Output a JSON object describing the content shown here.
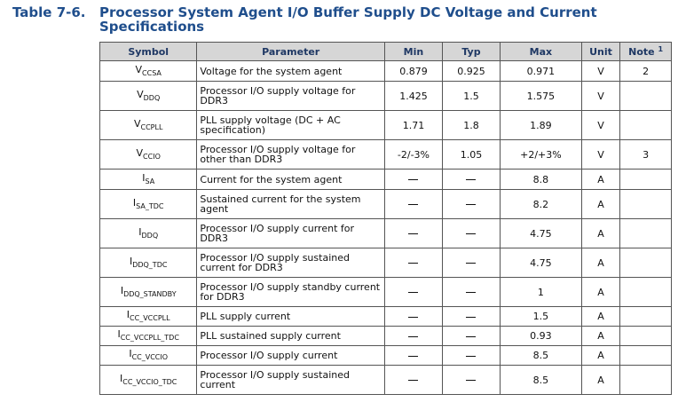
{
  "caption": {
    "number": "Table 7-6.",
    "title": "Processor System Agent I/O Buffer Supply DC Voltage and Current Specifications"
  },
  "headers": {
    "symbol": "Symbol",
    "parameter": "Parameter",
    "min": "Min",
    "typ": "Typ",
    "max": "Max",
    "unit": "Unit",
    "note": "Note",
    "note_sup": "1"
  },
  "rows": [
    {
      "sym_main": "V",
      "sym_sub": "CCSA",
      "parameter": "Voltage for the system agent",
      "min": "0.879",
      "typ": "0.925",
      "max": "0.971",
      "unit": "V",
      "note": "2"
    },
    {
      "sym_main": "V",
      "sym_sub": "DDQ",
      "parameter": "Processor I/O supply voltage for DDR3",
      "min": "1.425",
      "typ": "1.5",
      "max": "1.575",
      "unit": "V",
      "note": ""
    },
    {
      "sym_main": "V",
      "sym_sub": "CCPLL",
      "parameter": "PLL supply voltage (DC + AC specification)",
      "min": "1.71",
      "typ": "1.8",
      "max": "1.89",
      "unit": "V",
      "note": ""
    },
    {
      "sym_main": "V",
      "sym_sub": "CCIO",
      "parameter": "Processor I/O supply voltage for other than DDR3",
      "min": "-2/-3%",
      "typ": "1.05",
      "max": "+2/+3%",
      "unit": "V",
      "note": "3"
    },
    {
      "sym_main": "I",
      "sym_sub": "SA",
      "parameter": "Current for the system agent",
      "min": "",
      "typ": "",
      "max": "8.8",
      "unit": "A",
      "note": ""
    },
    {
      "sym_main": "I",
      "sym_sub": "SA_TDC",
      "parameter": "Sustained current for the system agent",
      "min": "",
      "typ": "",
      "max": "8.2",
      "unit": "A",
      "note": ""
    },
    {
      "sym_main": "I",
      "sym_sub": "DDQ",
      "parameter": "Processor I/O supply current for DDR3",
      "min": "",
      "typ": "",
      "max": "4.75",
      "unit": "A",
      "note": ""
    },
    {
      "sym_main": "I",
      "sym_sub": "DDQ_TDC",
      "parameter": "Processor I/O supply sustained current for DDR3",
      "min": "",
      "typ": "",
      "max": "4.75",
      "unit": "A",
      "note": ""
    },
    {
      "sym_main": "I",
      "sym_sub": "DDQ_STANDBY",
      "parameter": "Processor I/O supply standby current for DDR3",
      "min": "",
      "typ": "",
      "max": "1",
      "unit": "A",
      "note": ""
    },
    {
      "sym_main": "I",
      "sym_sub": "CC_VCCPLL",
      "parameter": "PLL supply current",
      "min": "",
      "typ": "",
      "max": "1.5",
      "unit": "A",
      "note": ""
    },
    {
      "sym_main": "I",
      "sym_sub": "CC_VCCPLL_TDC",
      "parameter": "PLL sustained supply current",
      "min": "",
      "typ": "",
      "max": "0.93",
      "unit": "A",
      "note": ""
    },
    {
      "sym_main": "I",
      "sym_sub": "CC_VCCIO",
      "parameter": "Processor I/O supply current",
      "min": "",
      "typ": "",
      "max": "8.5",
      "unit": "A",
      "note": ""
    },
    {
      "sym_main": "I",
      "sym_sub": "CC_VCCIO_TDC",
      "parameter": "Processor I/O supply sustained current",
      "min": "",
      "typ": "",
      "max": "8.5",
      "unit": "A",
      "note": ""
    }
  ]
}
